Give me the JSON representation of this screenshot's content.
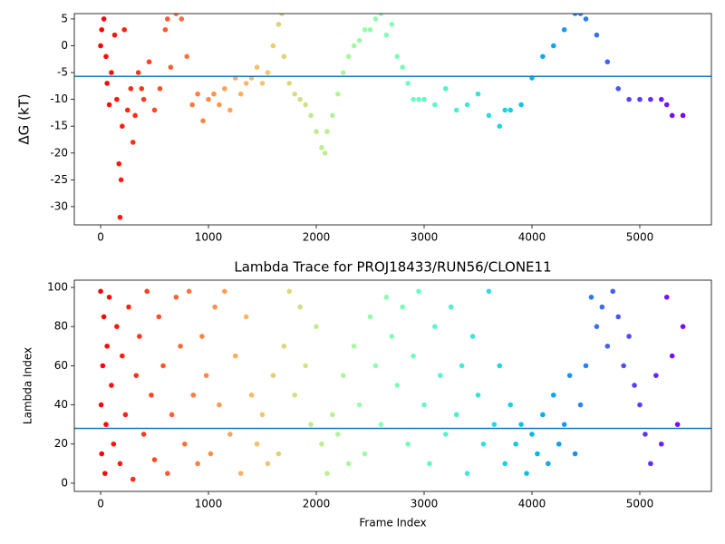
{
  "chart_data": [
    {
      "type": "scatter",
      "ylabel": "ΔG (kT)",
      "colormap": "rainbow_r",
      "x": [
        0,
        10,
        30,
        50,
        60,
        80,
        100,
        130,
        150,
        170,
        180,
        190,
        200,
        220,
        250,
        280,
        300,
        320,
        350,
        380,
        400,
        450,
        500,
        550,
        600,
        620,
        650,
        700,
        750,
        800,
        850,
        900,
        950,
        1000,
        1050,
        1100,
        1150,
        1200,
        1250,
        1300,
        1350,
        1400,
        1450,
        1500,
        1550,
        1600,
        1650,
        1680,
        1700,
        1750,
        1800,
        1850,
        1900,
        1950,
        2000,
        2050,
        2080,
        2100,
        2150,
        2200,
        2250,
        2300,
        2350,
        2400,
        2450,
        2500,
        2550,
        2600,
        2650,
        2700,
        2750,
        2800,
        2850,
        2900,
        2950,
        3000,
        3100,
        3200,
        3300,
        3400,
        3500,
        3600,
        3700,
        3750,
        3800,
        3900,
        4000,
        4100,
        4200,
        4300,
        4400,
        4450,
        4500,
        4600,
        4700,
        4800,
        4900,
        5000,
        5100,
        5200,
        5250,
        5300,
        5400
      ],
      "values": [
        0,
        3,
        5,
        -2,
        -7,
        -11,
        -5,
        2,
        -10,
        -22,
        -32,
        -25,
        -15,
        3,
        -12,
        -8,
        -18,
        -13,
        -5,
        -8,
        -10,
        -3,
        -12,
        -8,
        3,
        5,
        -4,
        6,
        5,
        -2,
        -11,
        -9,
        -14,
        -10,
        -9,
        -11,
        -8,
        -12,
        -6,
        -9,
        -7,
        -6,
        -4,
        -7,
        -5,
        0,
        4,
        6,
        -2,
        -7,
        -9,
        -10,
        -11,
        -13,
        -16,
        -19,
        -20,
        -16,
        -13,
        -9,
        -5,
        -2,
        0,
        1,
        3,
        3,
        5,
        6,
        2,
        4,
        -2,
        -4,
        -7,
        -10,
        -10,
        -10,
        -11,
        -8,
        -12,
        -11,
        -9,
        -13,
        -15,
        -12,
        -12,
        -11,
        -6,
        -2,
        0,
        3,
        6,
        6,
        5,
        2,
        -3,
        -8,
        -10,
        -10,
        -10,
        -10,
        -11,
        -13,
        -13
      ],
      "hline": -5.7,
      "hline_color": "#1f77b4",
      "xlim": [
        -244,
        5664
      ],
      "ylim": [
        -33.4,
        6.0
      ],
      "xticks": [
        0,
        1000,
        2000,
        3000,
        4000,
        5000
      ],
      "yticks": [
        -30,
        -25,
        -20,
        -15,
        -10,
        -5,
        0,
        5
      ]
    },
    {
      "type": "scatter",
      "title": "Lambda Trace for PROJ18433/RUN56/CLONE11",
      "xlabel": "Frame Index",
      "ylabel": "Lambda Index",
      "colormap": "rainbow_r",
      "x": [
        0,
        5,
        10,
        20,
        30,
        40,
        50,
        60,
        80,
        100,
        120,
        150,
        180,
        200,
        230,
        260,
        300,
        330,
        360,
        400,
        430,
        470,
        500,
        540,
        580,
        620,
        660,
        700,
        740,
        780,
        820,
        860,
        900,
        940,
        980,
        1020,
        1060,
        1100,
        1150,
        1200,
        1250,
        1300,
        1350,
        1400,
        1450,
        1500,
        1550,
        1600,
        1650,
        1700,
        1750,
        1800,
        1850,
        1900,
        1950,
        2000,
        2050,
        2100,
        2150,
        2200,
        2250,
        2300,
        2350,
        2400,
        2450,
        2500,
        2550,
        2600,
        2650,
        2700,
        2750,
        2800,
        2850,
        2900,
        2950,
        3000,
        3050,
        3100,
        3150,
        3200,
        3250,
        3300,
        3350,
        3400,
        3450,
        3500,
        3550,
        3600,
        3650,
        3700,
        3750,
        3800,
        3850,
        3900,
        3950,
        4000,
        4050,
        4100,
        4150,
        4200,
        4250,
        4300,
        4350,
        4400,
        4450,
        4500,
        4550,
        4600,
        4650,
        4700,
        4750,
        4800,
        4850,
        4900,
        4950,
        5000,
        5050,
        5100,
        5150,
        5200,
        5250,
        5300,
        5350,
        5400
      ],
      "values": [
        98,
        40,
        15,
        60,
        85,
        5,
        30,
        70,
        95,
        50,
        20,
        80,
        10,
        65,
        35,
        90,
        2,
        55,
        75,
        25,
        98,
        45,
        12,
        85,
        60,
        5,
        35,
        95,
        70,
        20,
        98,
        45,
        10,
        75,
        55,
        15,
        90,
        40,
        98,
        25,
        65,
        5,
        85,
        45,
        20,
        35,
        10,
        55,
        15,
        70,
        98,
        45,
        90,
        60,
        30,
        80,
        20,
        5,
        35,
        25,
        55,
        10,
        70,
        40,
        15,
        85,
        60,
        30,
        95,
        75,
        50,
        90,
        20,
        65,
        98,
        40,
        10,
        80,
        55,
        25,
        90,
        35,
        60,
        5,
        75,
        45,
        20,
        98,
        30,
        60,
        10,
        40,
        20,
        30,
        5,
        25,
        15,
        35,
        10,
        45,
        20,
        30,
        55,
        15,
        40,
        60,
        95,
        80,
        90,
        70,
        98,
        85,
        60,
        75,
        50,
        40,
        25,
        10,
        55,
        20,
        95,
        65,
        30,
        80
      ],
      "hline": 28,
      "hline_color": "#1f77b4",
      "xlim": [
        -244,
        5664
      ],
      "ylim": [
        -4.2,
        103.7
      ],
      "xticks": [
        0,
        1000,
        2000,
        3000,
        4000,
        5000
      ],
      "yticks": [
        0,
        20,
        40,
        60,
        80,
        100
      ]
    }
  ]
}
